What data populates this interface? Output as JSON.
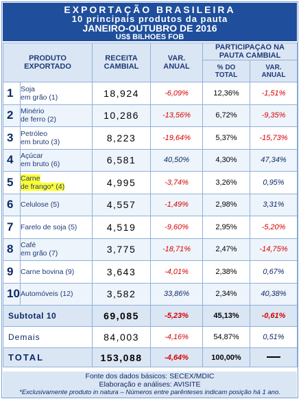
{
  "title": {
    "line1": "EXPORTAÇÃO BRASILEIRA",
    "line2": "10 principais produtos da pauta",
    "line3": "JANEIRO-OUTUBRO DE 2016",
    "line4": "US$ BILHOES FOB"
  },
  "headers": {
    "produto": "PRODUTO EXPORTADO",
    "receita": "RECEITA CAMBIAL",
    "var_anual": "VAR. ANUAL",
    "participacao": "PARTICIPAÇAO NA PAUTA CAMBIAL",
    "pct_total": "% DO TOTAL",
    "var_anual_2": "VAR. ANUAL"
  },
  "rows": [
    {
      "rank": "1",
      "name_l1": "Soja",
      "name_l2": "em grão (1)",
      "receita": "18,924",
      "var": "-6,09%",
      "pct": "12,36%",
      "var2": "-1,51%"
    },
    {
      "rank": "2",
      "name_l1": "Minério",
      "name_l2": "de ferro (2)",
      "receita": "10,286",
      "var": "-13,56%",
      "pct": "6,72%",
      "var2": "-9,35%"
    },
    {
      "rank": "3",
      "name_l1": "Petróleo",
      "name_l2": "em bruto (3)",
      "receita": "8,223",
      "var": "-19,64%",
      "pct": "5,37%",
      "var2": "-15,73%"
    },
    {
      "rank": "4",
      "name_l1": "Açúcar",
      "name_l2": "em bruto (6)",
      "receita": "6,581",
      "var": "40,50%",
      "pct": "4,30%",
      "var2": "47,34%"
    },
    {
      "rank": "5",
      "name_l1": "Carne",
      "name_l2": "de frango* (4)",
      "receita": "4,995",
      "var": "-3,74%",
      "pct": "3,26%",
      "var2": "0,95%"
    },
    {
      "rank": "6",
      "name_l1": "Celulose (5)",
      "name_l2": "",
      "receita": "4,557",
      "var": "-1,49%",
      "pct": "2,98%",
      "var2": "3,31%"
    },
    {
      "rank": "7",
      "name_l1": "Farelo de soja (5)",
      "name_l2": "",
      "receita": "4,519",
      "var": "-9,60%",
      "pct": "2,95%",
      "var2": "-5,20%"
    },
    {
      "rank": "8",
      "name_l1": "Café",
      "name_l2": "em grão (7)",
      "receita": "3,775",
      "var": "-18,71%",
      "pct": "2,47%",
      "var2": "-14,75%"
    },
    {
      "rank": "9",
      "name_l1": "Carne bovina (9)",
      "name_l2": "",
      "receita": "3,643",
      "var": "-4,01%",
      "pct": "2,38%",
      "var2": "0,67%"
    },
    {
      "rank": "10",
      "name_l1": "Automóveis (12)",
      "name_l2": "",
      "receita": "3,582",
      "var": "33,86%",
      "pct": "2,34%",
      "var2": "40,38%"
    }
  ],
  "subtotal": {
    "label": "Subtotal 10",
    "receita": "69,085",
    "var": "-5,23%",
    "pct": "45,13%",
    "var2": "-0,61%"
  },
  "demais": {
    "label": "Demais",
    "receita": "84,003",
    "var": "-4,16%",
    "pct": "54,87%",
    "var2": "0,51%"
  },
  "total": {
    "label": "TOTAL",
    "receita": "153,088",
    "var": "-4,64%",
    "pct": "100,00%"
  },
  "footer": {
    "fonte": "Fonte dos dados básicos: SECEX/MDIC",
    "elaboracao": "Elaboração e análises: AVISITE",
    "nota": "*Exclusivamente produto in natura – Números entre parênteses indicam posição há 1 ano."
  },
  "colors": {
    "title_bg": "#1f4f9c",
    "header_bg": "#dbe6f4",
    "negative": "#d60000",
    "positive": "#0d2a66",
    "highlight": "#ffff33"
  }
}
